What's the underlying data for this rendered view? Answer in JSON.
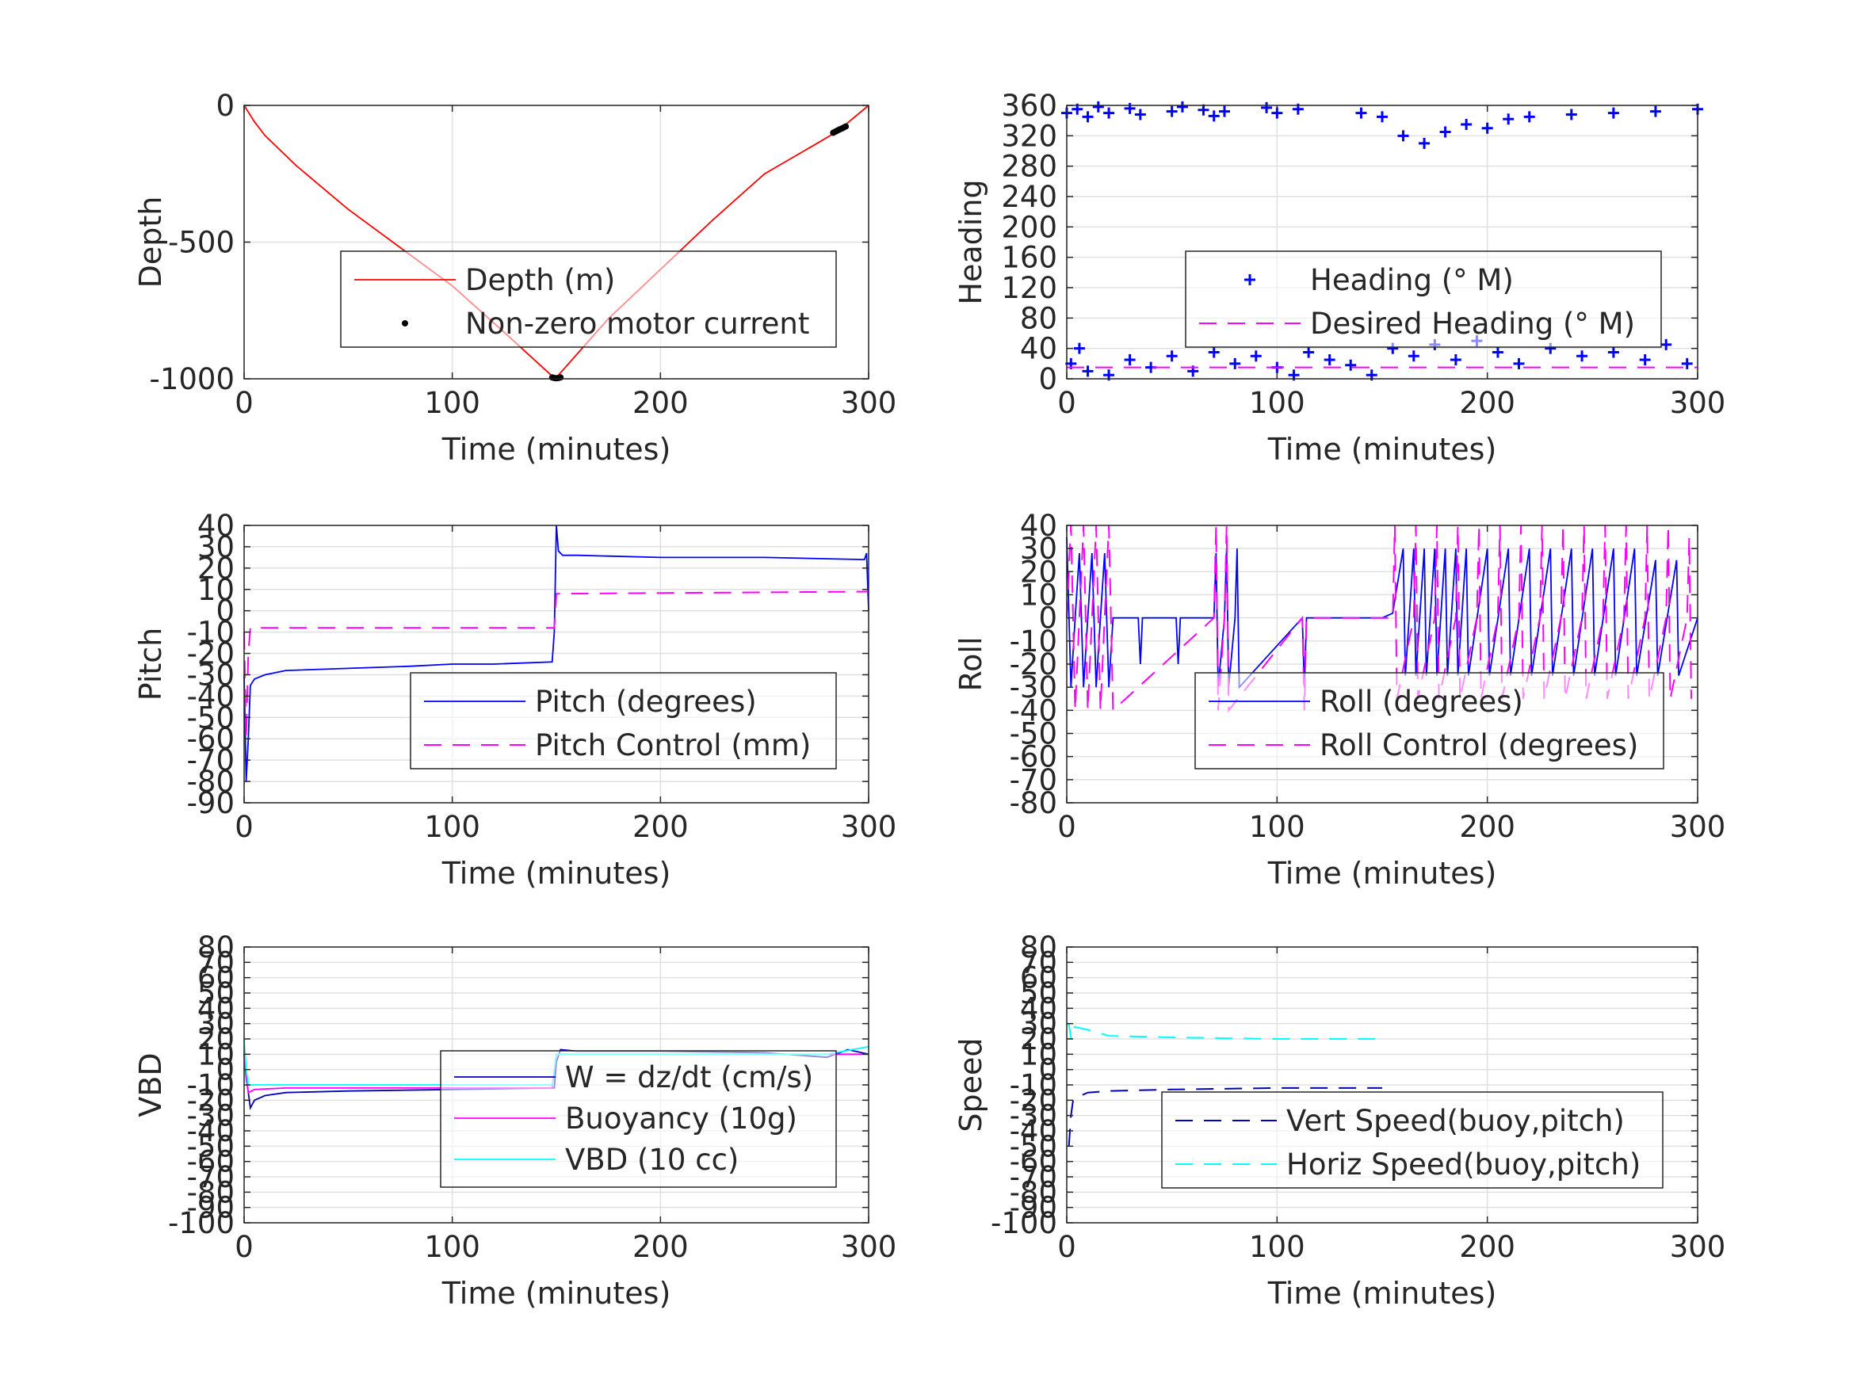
{
  "xlabel": "Time (minutes)",
  "chart_data": [
    {
      "id": "depth",
      "type": "line",
      "ylabel": "Depth",
      "xlim": [
        0,
        300
      ],
      "ylim": [
        -1000,
        0
      ],
      "xticks": [
        0,
        100,
        200,
        300
      ],
      "yticks": [
        0,
        -500,
        -1000
      ],
      "legend": "center-right",
      "series": [
        {
          "name": "Depth (m)",
          "color": "#ff0000",
          "style": "solid",
          "x": [
            0,
            5,
            10,
            25,
            50,
            75,
            100,
            125,
            148,
            150,
            175,
            200,
            225,
            250,
            275,
            285,
            300
          ],
          "y": [
            0,
            -60,
            -110,
            -220,
            -380,
            -520,
            -660,
            -830,
            -990,
            -995,
            -780,
            -600,
            -420,
            -250,
            -140,
            -95,
            0
          ]
        },
        {
          "name": "Non-zero motor current",
          "color": "#000000",
          "style": "points",
          "x": [
            148,
            149,
            150,
            151,
            152,
            283,
            284,
            285,
            286,
            287,
            288,
            289
          ],
          "y": [
            -995,
            -997,
            -998,
            -997,
            -995,
            -100,
            -96,
            -92,
            -88,
            -85,
            -81,
            -77
          ]
        }
      ]
    },
    {
      "id": "heading",
      "type": "scatter",
      "ylabel": "Heading",
      "xlim": [
        0,
        300
      ],
      "ylim": [
        0,
        360
      ],
      "xticks": [
        0,
        100,
        200,
        300
      ],
      "yticks": [
        0,
        40,
        80,
        120,
        160,
        200,
        240,
        280,
        320,
        360
      ],
      "legend": "center-right",
      "series": [
        {
          "name": "Heading (° M)",
          "color": "#0000ff",
          "style": "plus",
          "x": [
            0,
            5,
            10,
            15,
            20,
            30,
            35,
            50,
            55,
            65,
            70,
            75,
            95,
            100,
            110,
            140,
            150,
            160,
            170,
            180,
            190,
            200,
            210,
            220,
            240,
            260,
            280,
            300,
            2,
            6,
            10,
            20,
            30,
            40,
            50,
            60,
            70,
            80,
            90,
            100,
            108,
            115,
            125,
            135,
            145,
            155,
            165,
            175,
            185,
            195,
            205,
            215,
            230,
            245,
            260,
            275,
            285,
            295
          ],
          "y": [
            350,
            355,
            345,
            358,
            350,
            356,
            348,
            352,
            358,
            354,
            346,
            352,
            357,
            350,
            355,
            350,
            345,
            320,
            310,
            325,
            335,
            330,
            342,
            345,
            348,
            350,
            352,
            355,
            20,
            40,
            10,
            5,
            25,
            15,
            30,
            10,
            35,
            20,
            30,
            15,
            5,
            35,
            25,
            18,
            5,
            40,
            30,
            45,
            25,
            50,
            35,
            20,
            40,
            30,
            35,
            25,
            45,
            20
          ]
        },
        {
          "name": "Desired Heading (° M)",
          "color": "#ff00ff",
          "style": "dash",
          "x": [
            0,
            300
          ],
          "y": [
            15,
            15
          ]
        }
      ]
    },
    {
      "id": "pitch",
      "type": "line",
      "ylabel": "Pitch",
      "xlim": [
        0,
        300
      ],
      "ylim": [
        -90,
        40
      ],
      "xticks": [
        0,
        100,
        200,
        300
      ],
      "yticks": [
        40,
        30,
        20,
        10,
        0,
        -10,
        -20,
        -30,
        -40,
        -50,
        -60,
        -70,
        -80,
        -90
      ],
      "legend": "lower-right",
      "series": [
        {
          "name": "Pitch (degrees)",
          "color": "#0000ff",
          "style": "solid",
          "x": [
            0,
            1,
            2,
            3,
            5,
            10,
            20,
            50,
            80,
            100,
            120,
            148,
            149,
            150,
            151,
            153,
            160,
            200,
            250,
            298,
            299,
            300
          ],
          "y": [
            -30,
            -80,
            -60,
            -35,
            -32,
            -30,
            -28,
            -27,
            -26,
            -25,
            -25,
            -24,
            -10,
            40,
            28,
            26,
            26,
            25,
            25,
            24,
            27,
            0
          ]
        },
        {
          "name": "Pitch Control (mm)",
          "color": "#ff00ff",
          "style": "dash",
          "x": [
            0,
            1,
            2,
            3,
            148,
            149,
            150,
            300
          ],
          "y": [
            -10,
            -60,
            -20,
            -8,
            -8,
            -8,
            8,
            9
          ]
        }
      ]
    },
    {
      "id": "roll",
      "type": "line",
      "ylabel": "Roll",
      "xlim": [
        0,
        300
      ],
      "ylim": [
        -80,
        40
      ],
      "xticks": [
        0,
        100,
        200,
        300
      ],
      "yticks": [
        40,
        30,
        20,
        10,
        0,
        -10,
        -20,
        -30,
        -40,
        -50,
        -60,
        -70,
        -80
      ],
      "legend": "center-right",
      "series": [
        {
          "name": "Roll (degrees)",
          "color": "#0000ff",
          "style": "solid",
          "x": [
            0,
            2,
            4,
            6,
            8,
            10,
            12,
            14,
            16,
            18,
            20,
            22,
            34,
            35,
            36,
            52,
            53,
            54,
            70,
            71,
            72,
            75,
            76,
            77,
            80,
            81,
            82,
            112,
            113,
            114,
            150,
            155,
            160,
            161,
            165,
            166,
            170,
            171,
            175,
            176,
            180,
            181,
            185,
            186,
            190,
            191,
            200,
            201,
            210,
            211,
            220,
            221,
            230,
            231,
            240,
            241,
            250,
            251,
            260,
            261,
            270,
            271,
            280,
            281,
            290,
            291,
            300
          ],
          "y": [
            35,
            -30,
            0,
            28,
            -30,
            0,
            28,
            -30,
            0,
            28,
            -30,
            0,
            0,
            -20,
            0,
            0,
            -20,
            0,
            0,
            28,
            -30,
            0,
            30,
            -30,
            0,
            30,
            -30,
            0,
            -30,
            0,
            0,
            2,
            30,
            -25,
            30,
            -25,
            30,
            -25,
            30,
            -25,
            30,
            -25,
            30,
            -25,
            30,
            -25,
            30,
            -25,
            30,
            -25,
            30,
            -25,
            30,
            -25,
            30,
            -25,
            30,
            -25,
            30,
            -25,
            30,
            -25,
            25,
            -25,
            25,
            -25,
            0
          ]
        },
        {
          "name": "Roll Control (degrees)",
          "color": "#ff00ff",
          "style": "dash",
          "x": [
            0,
            2,
            4,
            6,
            8,
            10,
            12,
            14,
            16,
            18,
            20,
            22,
            70,
            71,
            72,
            75,
            76,
            77,
            112,
            113,
            114,
            155,
            156,
            157,
            165,
            166,
            167,
            175,
            176,
            177,
            185,
            186,
            187,
            195,
            196,
            197,
            205,
            206,
            207,
            215,
            216,
            217,
            225,
            226,
            227,
            235,
            236,
            237,
            245,
            246,
            247,
            255,
            256,
            257,
            265,
            266,
            267,
            275,
            276,
            277,
            285,
            286,
            287,
            295,
            296,
            297
          ],
          "y": [
            0,
            40,
            -40,
            0,
            40,
            -40,
            0,
            40,
            -40,
            0,
            40,
            -40,
            0,
            40,
            -40,
            0,
            40,
            -40,
            0,
            -40,
            0,
            0,
            40,
            -35,
            0,
            40,
            -35,
            0,
            40,
            -35,
            0,
            40,
            -35,
            0,
            40,
            -35,
            0,
            40,
            -35,
            0,
            40,
            -35,
            0,
            40,
            -35,
            0,
            40,
            -35,
            0,
            40,
            -35,
            0,
            40,
            -35,
            0,
            40,
            -35,
            0,
            40,
            -35,
            0,
            40,
            -35,
            0,
            35,
            -35
          ]
        }
      ]
    },
    {
      "id": "vbd",
      "type": "line",
      "ylabel": "VBD",
      "xlim": [
        0,
        300
      ],
      "ylim": [
        -100,
        80
      ],
      "xticks": [
        0,
        100,
        200,
        300
      ],
      "yticks": [
        80,
        70,
        60,
        50,
        40,
        30,
        20,
        10,
        0,
        -10,
        -20,
        -30,
        -40,
        -50,
        -60,
        -70,
        -80,
        -90,
        -100
      ],
      "legend": "lower-right",
      "series": [
        {
          "name": "W = dz/dt (cm/s)",
          "color": "#0000bb",
          "style": "solid",
          "x": [
            0,
            1,
            2,
            3,
            5,
            10,
            20,
            50,
            100,
            148,
            149,
            150,
            152,
            160,
            200,
            250,
            280,
            290,
            300
          ],
          "y": [
            10,
            -5,
            -15,
            -25,
            -20,
            -17,
            -15,
            -14,
            -13,
            -12,
            -12,
            5,
            13,
            12,
            12,
            11,
            8,
            13,
            10
          ]
        },
        {
          "name": "Buoyancy (10g)",
          "color": "#ff00ff",
          "style": "solid",
          "x": [
            0,
            2,
            5,
            20,
            100,
            148,
            150,
            300
          ],
          "y": [
            10,
            -15,
            -13,
            -12,
            -12,
            -12,
            10,
            10
          ]
        },
        {
          "name": "VBD (10 cc)",
          "color": "#00ffff",
          "style": "solid",
          "x": [
            0,
            1,
            2,
            5,
            100,
            148,
            150,
            280,
            300
          ],
          "y": [
            20,
            0,
            -10,
            -10,
            -10,
            -10,
            10,
            10,
            15
          ]
        }
      ]
    },
    {
      "id": "speed",
      "type": "line",
      "ylabel": "Speed",
      "xlim": [
        0,
        300
      ],
      "ylim": [
        -100,
        80
      ],
      "xticks": [
        0,
        100,
        200,
        300
      ],
      "yticks": [
        80,
        70,
        60,
        50,
        40,
        30,
        20,
        10,
        0,
        -10,
        -20,
        -30,
        -40,
        -50,
        -60,
        -70,
        -80,
        -90,
        -100
      ],
      "legend": "lower-right",
      "series": [
        {
          "name": "Vert Speed(buoy,pitch)",
          "color": "#0000bb",
          "style": "dash",
          "x": [
            1,
            2,
            3,
            5,
            10,
            20,
            50,
            100,
            150
          ],
          "y": [
            -50,
            -30,
            -20,
            -18,
            -15,
            -14,
            -13,
            -12,
            -12
          ]
        },
        {
          "name": "Horiz Speed(buoy,pitch)",
          "color": "#00ffff",
          "style": "dash",
          "x": [
            1,
            2,
            3,
            10,
            20,
            50,
            100,
            150
          ],
          "y": [
            30,
            20,
            28,
            26,
            22,
            21,
            20,
            20
          ]
        }
      ]
    }
  ]
}
